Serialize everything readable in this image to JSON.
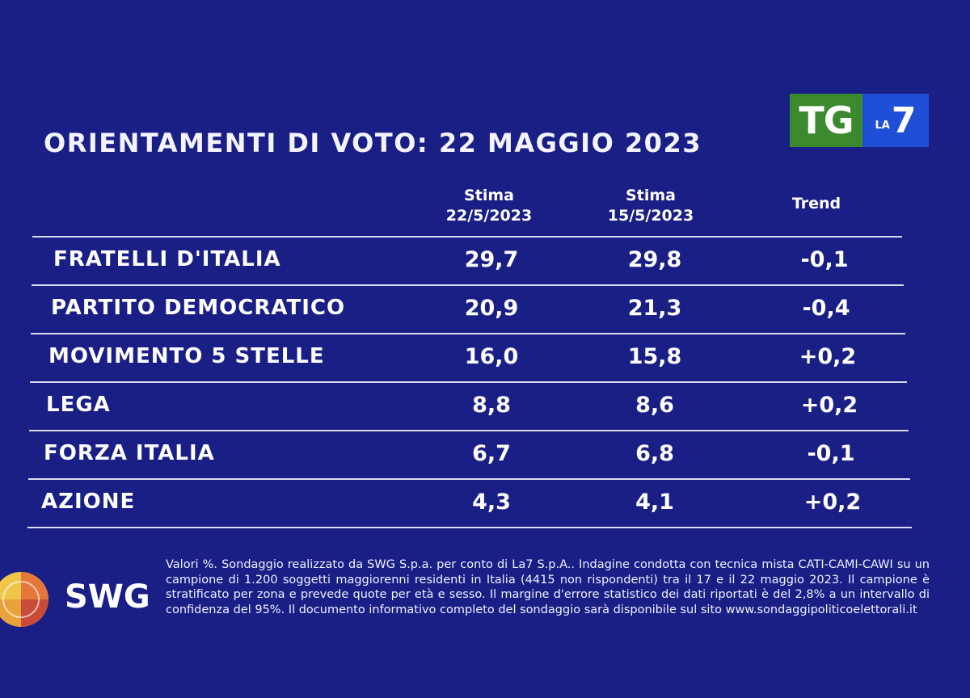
{
  "chart_data": {
    "type": "table",
    "title": "ORIENTAMENTI DI VOTO: 22 MAGGIO 2023",
    "columns": [
      {
        "line1": "Stima",
        "line2": "22/5/2023"
      },
      {
        "line1": "Stima",
        "line2": "15/5/2023"
      },
      {
        "line1": "Trend",
        "line2": ""
      }
    ],
    "rows": [
      {
        "party": "FRATELLI D'ITALIA",
        "stima_22": "29,7",
        "stima_15": "29,8",
        "trend": "-0,1"
      },
      {
        "party": "PARTITO DEMOCRATICO",
        "stima_22": "20,9",
        "stima_15": "21,3",
        "trend": "-0,4"
      },
      {
        "party": "MOVIMENTO 5 STELLE",
        "stima_22": "16,0",
        "stima_15": "15,8",
        "trend": "+0,2"
      },
      {
        "party": "LEGA",
        "stima_22": "8,8",
        "stima_15": "8,6",
        "trend": "+0,2"
      },
      {
        "party": "FORZA ITALIA",
        "stima_22": "6,7",
        "stima_15": "6,8",
        "trend": "-0,1"
      },
      {
        "party": "AZIONE",
        "stima_22": "4,3",
        "stima_15": "4,1",
        "trend": "+0,2"
      }
    ]
  },
  "logo": {
    "tg": "TG",
    "la": "LA",
    "seven": "7"
  },
  "swg": {
    "name": "SWG"
  },
  "note": "Valori %. Sondaggio realizzato da SWG S.p.a. per conto di La7 S.p.A.. Indagine condotta con tecnica mista CATI-CAMI-CAWI su un campione di 1.200 soggetti maggiorenni residenti in Italia (4415 non rispondenti) tra il 17 e il 22 maggio 2023. Il campione è stratificato per zona e prevede quote per età e sesso. Il margine d'errore statistico dei dati riportati è del 2,8% a un intervallo di confidenza del 95%. Il documento informativo completo del sondaggio sarà disponibile sul sito www.sondaggipoliticoelettorali.it",
  "colors": {
    "background": "#1a1f86",
    "tg_green": "#3b8a2e",
    "la7_blue": "#1f4fd6"
  }
}
